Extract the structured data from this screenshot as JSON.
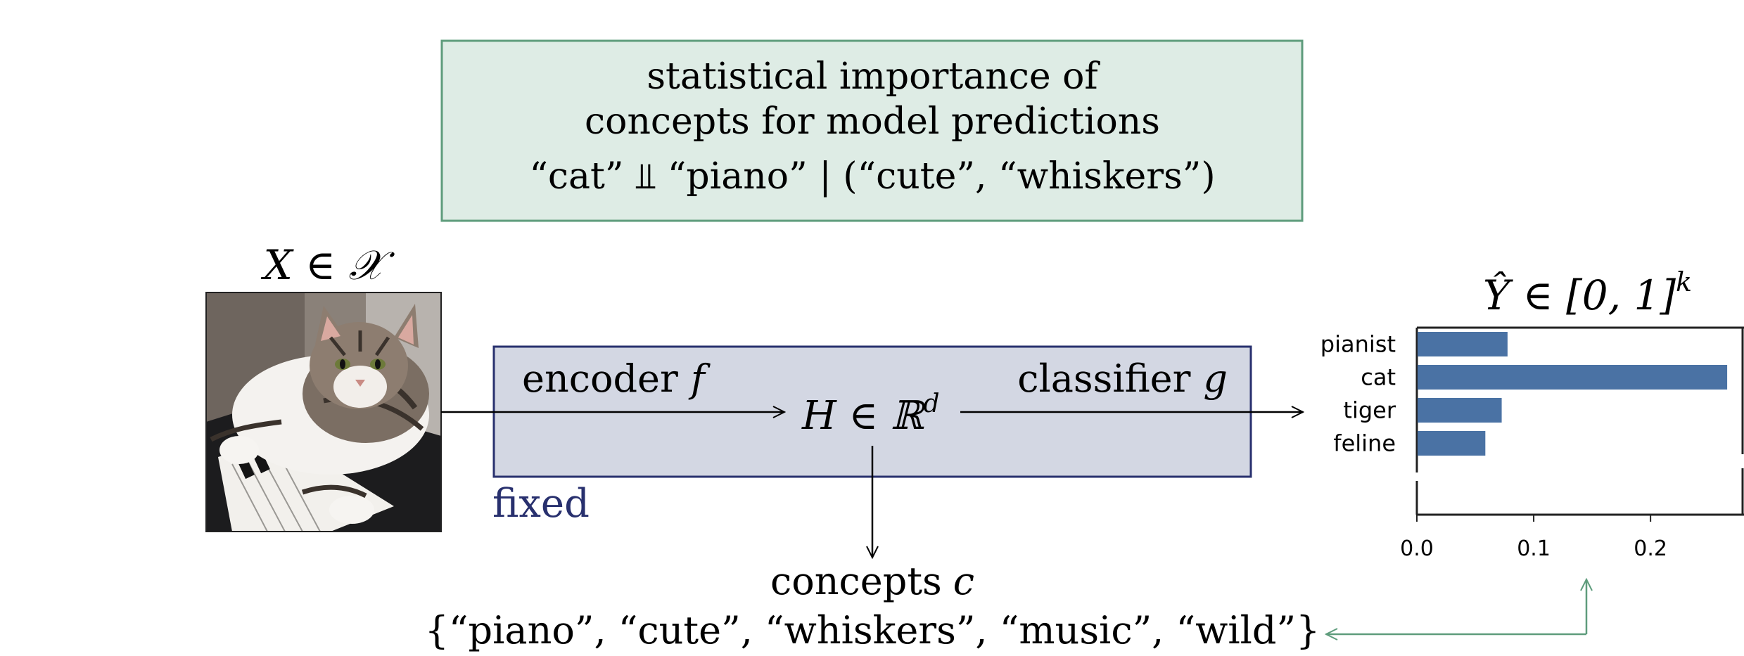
{
  "top_box": {
    "line1": "statistical importance of",
    "line2": "concepts for model predictions",
    "line3": "“cat” ⫫ “piano” | (“cute”, “whiskers”)"
  },
  "input": {
    "label": "X ∈ 𝒳",
    "image_subject": "cat-on-piano"
  },
  "model": {
    "encoder_label": "encoder",
    "encoder_symbol": "f",
    "classifier_label": "classifier",
    "classifier_symbol": "g",
    "embedding_label": "H ∈ ℝ",
    "embedding_sup": "d",
    "fixed_label": "fixed"
  },
  "concepts": {
    "title": "concepts",
    "symbol": "c",
    "list": "{“piano”, “cute”, “whiskers”, “music”, “wild”}"
  },
  "output": {
    "label": "Ŷ ∈ [0, 1]",
    "label_sup": "k"
  },
  "colors": {
    "top_box_fill": "#deece5",
    "top_box_stroke": "#5e9c7c",
    "model_fill": "#d3d7e3",
    "model_stroke": "#28306e",
    "fixed_text": "#28306e",
    "bar": "#4a72a4",
    "feedback_arrow": "#5e9c7c"
  },
  "chart_data": {
    "type": "bar",
    "orientation": "horizontal",
    "categories": [
      "pianist",
      "cat",
      "tiger",
      "feline"
    ],
    "values": [
      0.077,
      0.265,
      0.072,
      0.058
    ],
    "xlim": [
      0,
      0.28
    ],
    "xticks": [
      "0.0",
      "0.1",
      "0.2"
    ],
    "xtick_values": [
      0,
      0.1,
      0.2
    ],
    "grid": false
  }
}
